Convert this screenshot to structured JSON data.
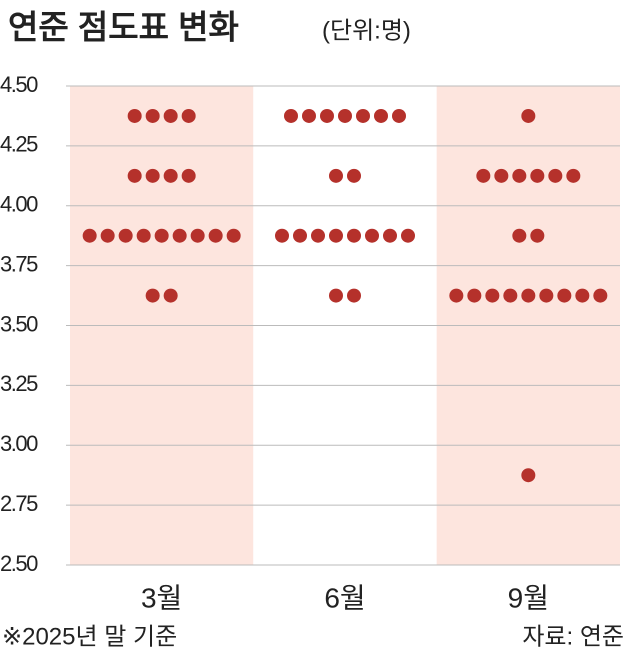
{
  "chart_data": {
    "type": "dot",
    "title": "연준 점도표 변화",
    "subtitle": "(단위:명)",
    "note": "※2025년 말 기준",
    "source": "자료: 연준",
    "categories": [
      "3월",
      "6월",
      "9월"
    ],
    "y": [
      4.375,
      4.125,
      3.875,
      3.625,
      2.875
    ],
    "counts": [
      [
        4,
        4,
        9,
        2,
        0
      ],
      [
        7,
        2,
        8,
        2,
        0
      ],
      [
        1,
        6,
        2,
        9,
        1
      ]
    ],
    "color": "#b5312b",
    "band_colors": [
      "#fde5de",
      "#ffffff",
      "#fde5de"
    ],
    "ylim": [
      2.5,
      4.5
    ],
    "yticks": [
      {
        "value": 2.5,
        "label": "2.50"
      },
      {
        "value": 2.75,
        "label": "2.75"
      },
      {
        "value": 3,
        "label": "3.00"
      },
      {
        "value": 3.25,
        "label": "3.25"
      },
      {
        "value": 3.5,
        "label": "3.50"
      },
      {
        "value": 3.75,
        "label": "3.75"
      },
      {
        "value": 4,
        "label": "4.00"
      },
      {
        "value": 4.25,
        "label": "4.25"
      },
      {
        "value": 4.5,
        "label": "4.50"
      }
    ],
    "grid": true
  }
}
